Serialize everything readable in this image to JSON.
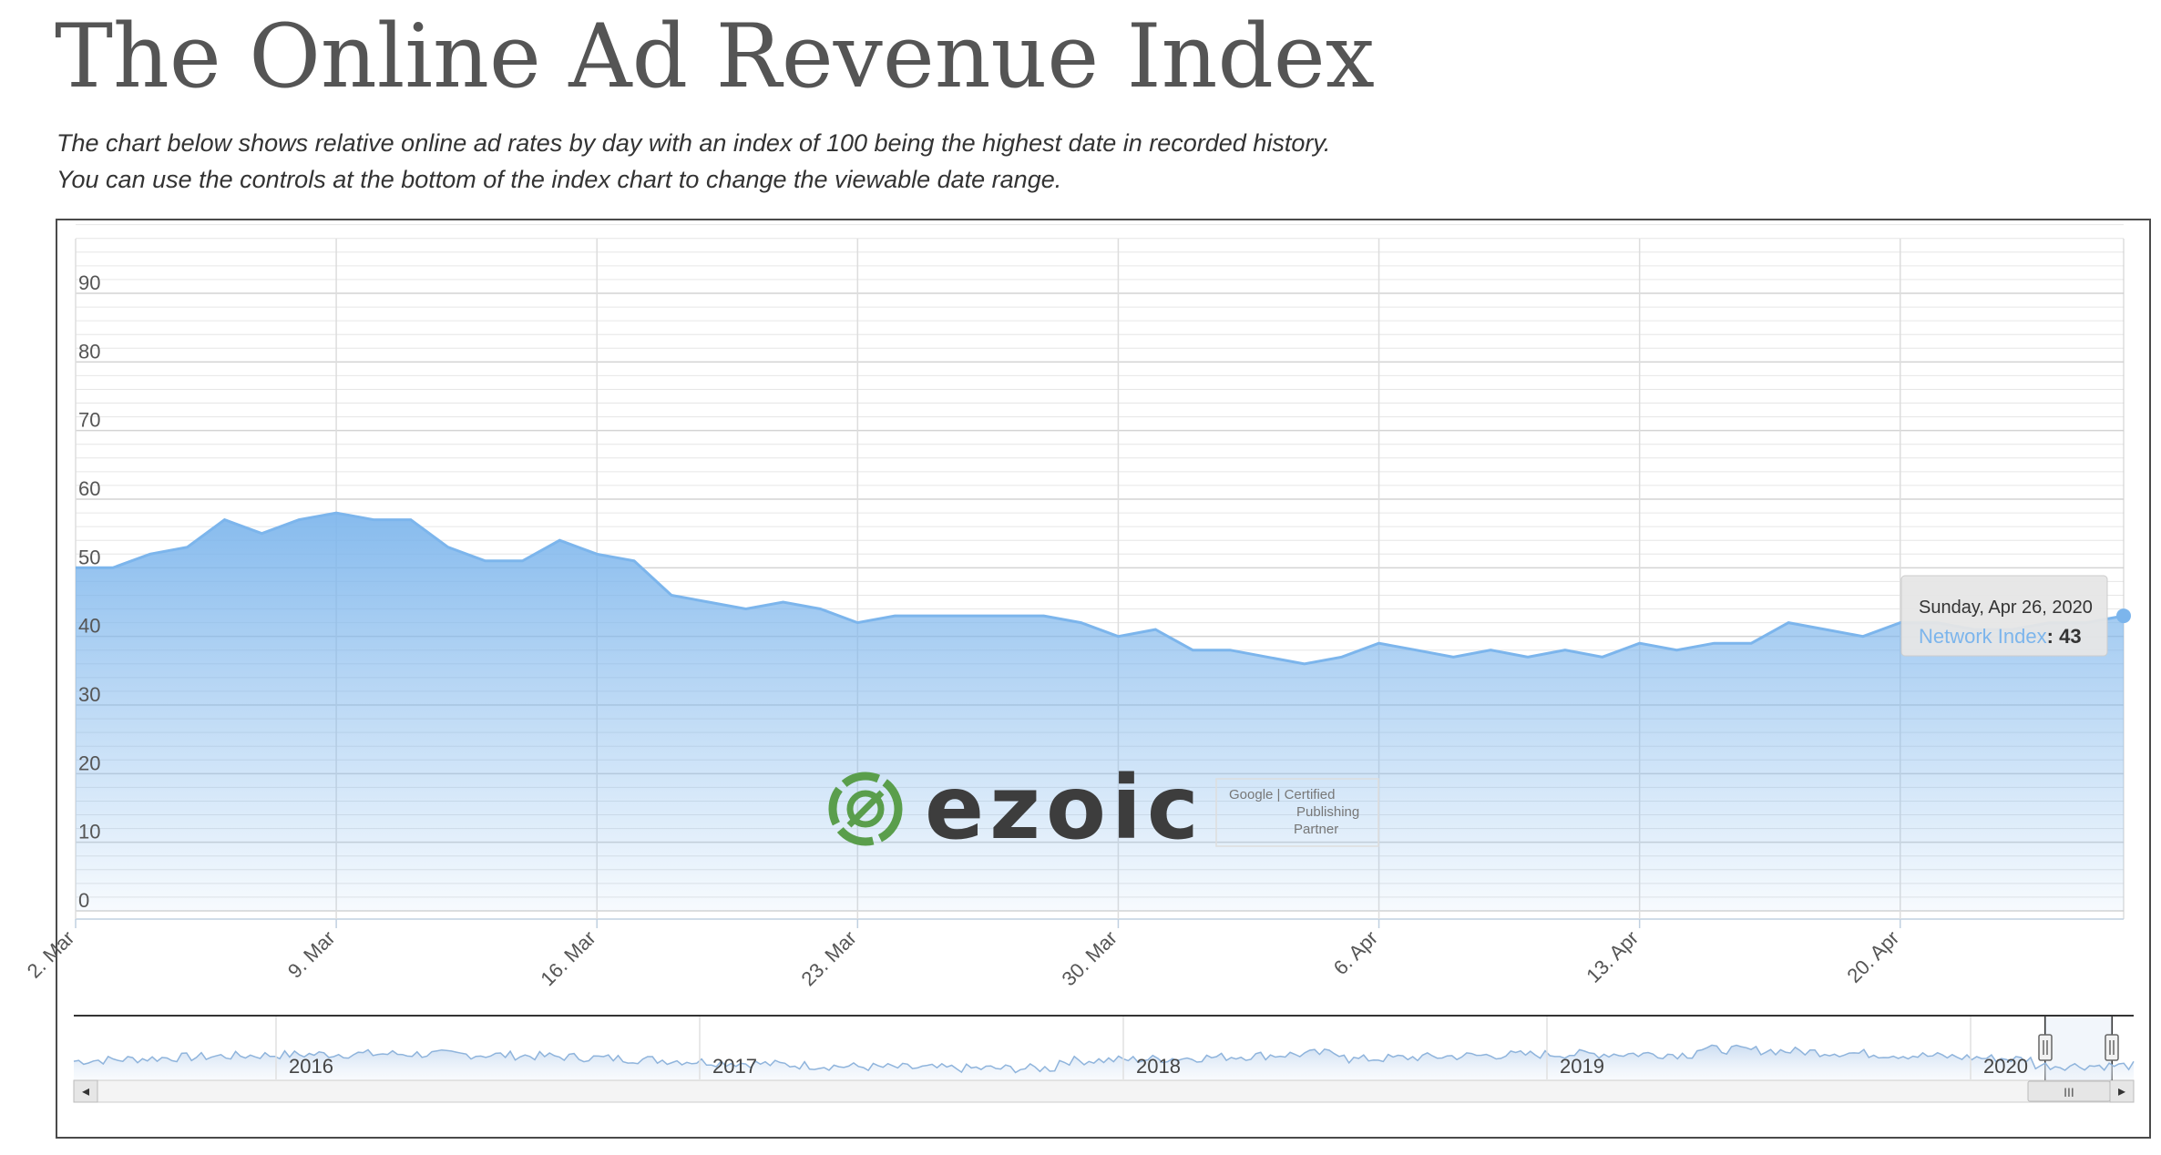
{
  "page": {
    "title": "The Online Ad Revenue Index",
    "intro_line1": "The chart below shows relative online ad rates by day with an index of 100 being the highest date in recorded history.",
    "intro_line2": "You can use the controls at the bottom of the index chart to change the viewable date range."
  },
  "chart_data": {
    "type": "area",
    "series": [
      {
        "name": "Network Index",
        "color": "#7cb5ec",
        "x": [
          "2020-03-02",
          "2020-03-03",
          "2020-03-04",
          "2020-03-05",
          "2020-03-06",
          "2020-03-07",
          "2020-03-08",
          "2020-03-09",
          "2020-03-10",
          "2020-03-11",
          "2020-03-12",
          "2020-03-13",
          "2020-03-14",
          "2020-03-15",
          "2020-03-16",
          "2020-03-17",
          "2020-03-18",
          "2020-03-19",
          "2020-03-20",
          "2020-03-21",
          "2020-03-22",
          "2020-03-23",
          "2020-03-24",
          "2020-03-25",
          "2020-03-26",
          "2020-03-27",
          "2020-03-28",
          "2020-03-29",
          "2020-03-30",
          "2020-03-31",
          "2020-04-01",
          "2020-04-02",
          "2020-04-03",
          "2020-04-04",
          "2020-04-05",
          "2020-04-06",
          "2020-04-07",
          "2020-04-08",
          "2020-04-09",
          "2020-04-10",
          "2020-04-11",
          "2020-04-12",
          "2020-04-13",
          "2020-04-14",
          "2020-04-15",
          "2020-04-16",
          "2020-04-17",
          "2020-04-18",
          "2020-04-19",
          "2020-04-20",
          "2020-04-21",
          "2020-04-22",
          "2020-04-23",
          "2020-04-24",
          "2020-04-25",
          "2020-04-26"
        ],
        "values": [
          50,
          50,
          52,
          53,
          57,
          55,
          57,
          58,
          57,
          57,
          53,
          51,
          51,
          54,
          52,
          51,
          46,
          45,
          44,
          45,
          44,
          42,
          43,
          43,
          43,
          43,
          43,
          42,
          40,
          41,
          38,
          38,
          37,
          36,
          37,
          39,
          38,
          37,
          38,
          37,
          38,
          37,
          39,
          38,
          39,
          39,
          42,
          41,
          40,
          42,
          42,
          41,
          41,
          42,
          42,
          43
        ]
      }
    ],
    "y_ticks": [
      "0",
      "10",
      "20",
      "30",
      "40",
      "50",
      "60",
      "70",
      "80",
      "90"
    ],
    "ylim": [
      0,
      100
    ],
    "x_tick_labels": [
      "2. Mar",
      "9. Mar",
      "16. Mar",
      "23. Mar",
      "30. Mar",
      "6. Apr",
      "13. Apr",
      "20. Apr"
    ],
    "grid": true,
    "tooltip": {
      "date": "Sunday, Apr 26, 2020",
      "series_name": "Network Index",
      "separator": ": ",
      "value": "43"
    },
    "navigator": {
      "years": [
        "2016",
        "2017",
        "2018",
        "2019",
        "2020"
      ],
      "scroll_left_arrow": "◂",
      "scroll_right_arrow": "▸",
      "scroll_grip": "III",
      "handle_grip": "|||"
    },
    "watermark": {
      "brand": "ezoic",
      "badge_line1": "Google | Certified",
      "badge_line2": "Publishing",
      "badge_line3": "Partner"
    }
  }
}
